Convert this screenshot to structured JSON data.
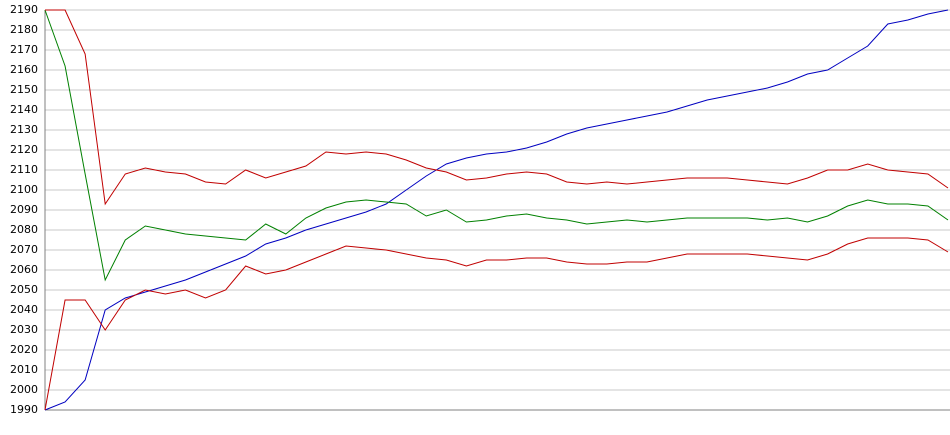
{
  "chart_data": {
    "type": "line",
    "categories": [
      null,
      null,
      null,
      null,
      null,
      null,
      null,
      null,
      null,
      null,
      null,
      null,
      null,
      null,
      null,
      null,
      null,
      null,
      null,
      null,
      null,
      null,
      null,
      null,
      null,
      null,
      null,
      null,
      null,
      null,
      null,
      null,
      null,
      null,
      null,
      null,
      null,
      null,
      null,
      null,
      null,
      null,
      null,
      null,
      null,
      null
    ],
    "series": [
      {
        "color": "#0000c0",
        "values": [
          1990,
          1994,
          2005,
          2040,
          2046,
          2049,
          2052,
          2055,
          2059,
          2063,
          2067,
          2073,
          2076,
          2080,
          2083,
          2086,
          2089,
          2093,
          2100,
          2107,
          2113,
          2116,
          2118,
          2119,
          2121,
          2124,
          2128,
          2131,
          2133,
          2135,
          2137,
          2139,
          2142,
          2145,
          2147,
          2149,
          2151,
          2154,
          2158,
          2160,
          2166,
          2172,
          2183,
          2185,
          2188,
          2190
        ]
      },
      {
        "color": "#008000",
        "values": [
          2190,
          2162,
          2108,
          2055,
          2075,
          2082,
          2080,
          2078,
          2077,
          2076,
          2075,
          2083,
          2078,
          2086,
          2091,
          2094,
          2095,
          2094,
          2093,
          2087,
          2090,
          2084,
          2085,
          2087,
          2088,
          2086,
          2085,
          2083,
          2084,
          2085,
          2084,
          2085,
          2086,
          2086,
          2086,
          2086,
          2085,
          2086,
          2084,
          2087,
          2092,
          2095,
          2093,
          2093,
          2092,
          2085
        ]
      },
      {
        "color": "#c00000",
        "values": [
          2190,
          2190,
          2168,
          2093,
          2108,
          2111,
          2109,
          2108,
          2104,
          2103,
          2110,
          2106,
          2109,
          2112,
          2119,
          2118,
          2119,
          2118,
          2115,
          2111,
          2109,
          2105,
          2106,
          2108,
          2109,
          2108,
          2104,
          2103,
          2104,
          2103,
          2104,
          2105,
          2106,
          2106,
          2106,
          2105,
          2104,
          2103,
          2106,
          2110,
          2110,
          2113,
          2110,
          2109,
          2108,
          2101
        ]
      },
      {
        "color": "#c00000",
        "values": [
          1990,
          2045,
          2045,
          2030,
          2045,
          2050,
          2048,
          2050,
          2046,
          2050,
          2062,
          2058,
          2060,
          2064,
          2068,
          2072,
          2071,
          2070,
          2068,
          2066,
          2065,
          2062,
          2065,
          2065,
          2066,
          2066,
          2064,
          2063,
          2063,
          2064,
          2064,
          2066,
          2068,
          2068,
          2068,
          2068,
          2067,
          2066,
          2065,
          2068,
          2073,
          2076,
          2076,
          2076,
          2075,
          2069
        ]
      }
    ],
    "ylim": [
      1990,
      2190
    ],
    "yticks": [
      1990,
      2000,
      2010,
      2020,
      2030,
      2040,
      2050,
      2060,
      2070,
      2080,
      2090,
      2100,
      2110,
      2120,
      2130,
      2140,
      2150,
      2160,
      2170,
      2180,
      2190
    ],
    "grid": true
  }
}
